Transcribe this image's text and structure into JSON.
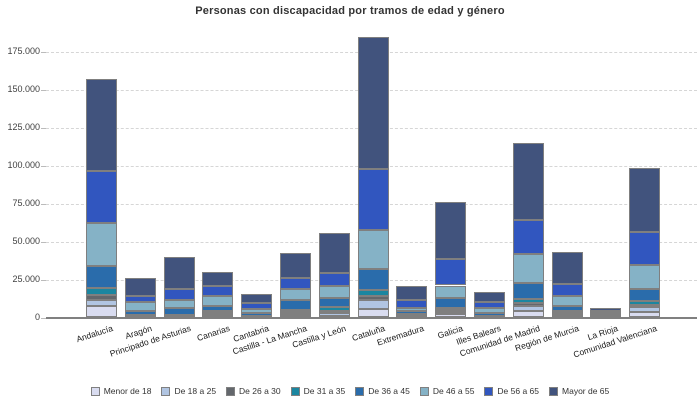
{
  "chart_data": {
    "type": "stacked-bar",
    "title": "Personas con discapacidad por tramos de edad y género",
    "categories": [
      "Andalucía",
      "Aragón",
      "Principado de Asturias",
      "Canarias",
      "Cantabria",
      "Castilla - La Mancha",
      "Castilla y León",
      "Cataluña",
      "Extremadura",
      "Galicia",
      "Illes Balears",
      "Comunidad de Madrid",
      "Región de Murcia",
      "La Rioja",
      "Comunidad Valenciana"
    ],
    "series": [
      {
        "name": "Menor de 18",
        "color": "#d9dcf0",
        "values": [
          7300,
          400,
          400,
          1100,
          300,
          1050,
          1200,
          5900,
          600,
          2150,
          300,
          4300,
          1000,
          300,
          3900
        ]
      },
      {
        "name": "De 18 a 25",
        "color": "#b1c5e2",
        "values": [
          4100,
          450,
          450,
          1000,
          350,
          1050,
          1950,
          5600,
          650,
          1500,
          350,
          3250,
          1100,
          400,
          3000
        ]
      },
      {
        "name": "De 26 a 30",
        "color": "#63676c",
        "values": [
          3700,
          300,
          300,
          1050,
          250,
          1300,
          1300,
          2600,
          450,
          1300,
          250,
          1750,
          650,
          150,
          1100
        ]
      },
      {
        "name": "De 31 a 35",
        "color": "#1b86a0",
        "values": [
          4100,
          500,
          450,
          1300,
          400,
          1700,
          2250,
          3900,
          700,
          1550,
          300,
          3050,
          1300,
          300,
          2950
        ]
      },
      {
        "name": "De 36 a 45",
        "color": "#2a6cab",
        "values": [
          14550,
          2800,
          4400,
          3250,
          1750,
          6550,
          6100,
          13700,
          1700,
          6050,
          1750,
          10650,
          3800,
          1300,
          7850
        ]
      },
      {
        "name": "De 46 a 55",
        "color": "#85b2c6",
        "values": [
          28350,
          5500,
          5200,
          6150,
          2600,
          7000,
          7650,
          26100,
          2200,
          8500,
          3050,
          18750,
          6200,
          650,
          16000
        ]
      },
      {
        "name": "De 56 a 65",
        "color": "#3156bf",
        "values": [
          34150,
          3900,
          7400,
          6900,
          3900,
          7400,
          8700,
          39850,
          5450,
          17150,
          4300,
          22400,
          7850,
          1300,
          21750
        ]
      },
      {
        "name": "Mayor de 65",
        "color": "#41537d",
        "values": [
          60550,
          12400,
          21100,
          9150,
          6100,
          16200,
          26200,
          86850,
          8700,
          37500,
          6550,
          50500,
          21150,
          1750,
          42050
        ]
      }
    ],
    "totals": [
      156800,
      26250,
      39700,
      29900,
      15650,
      42250,
      55350,
      184500,
      20450,
      75700,
      16850,
      114650,
      43050,
      6150,
      98600
    ],
    "y_axis": {
      "tick_labels": [
        "0",
        "25.000",
        "50.000",
        "75.000",
        "100.000",
        "125.000",
        "150.000",
        "175.000"
      ],
      "tick_step": 25000,
      "ylim": [
        0,
        186000
      ],
      "grid": "horizontal-dashed"
    },
    "legend_position": "bottom"
  }
}
